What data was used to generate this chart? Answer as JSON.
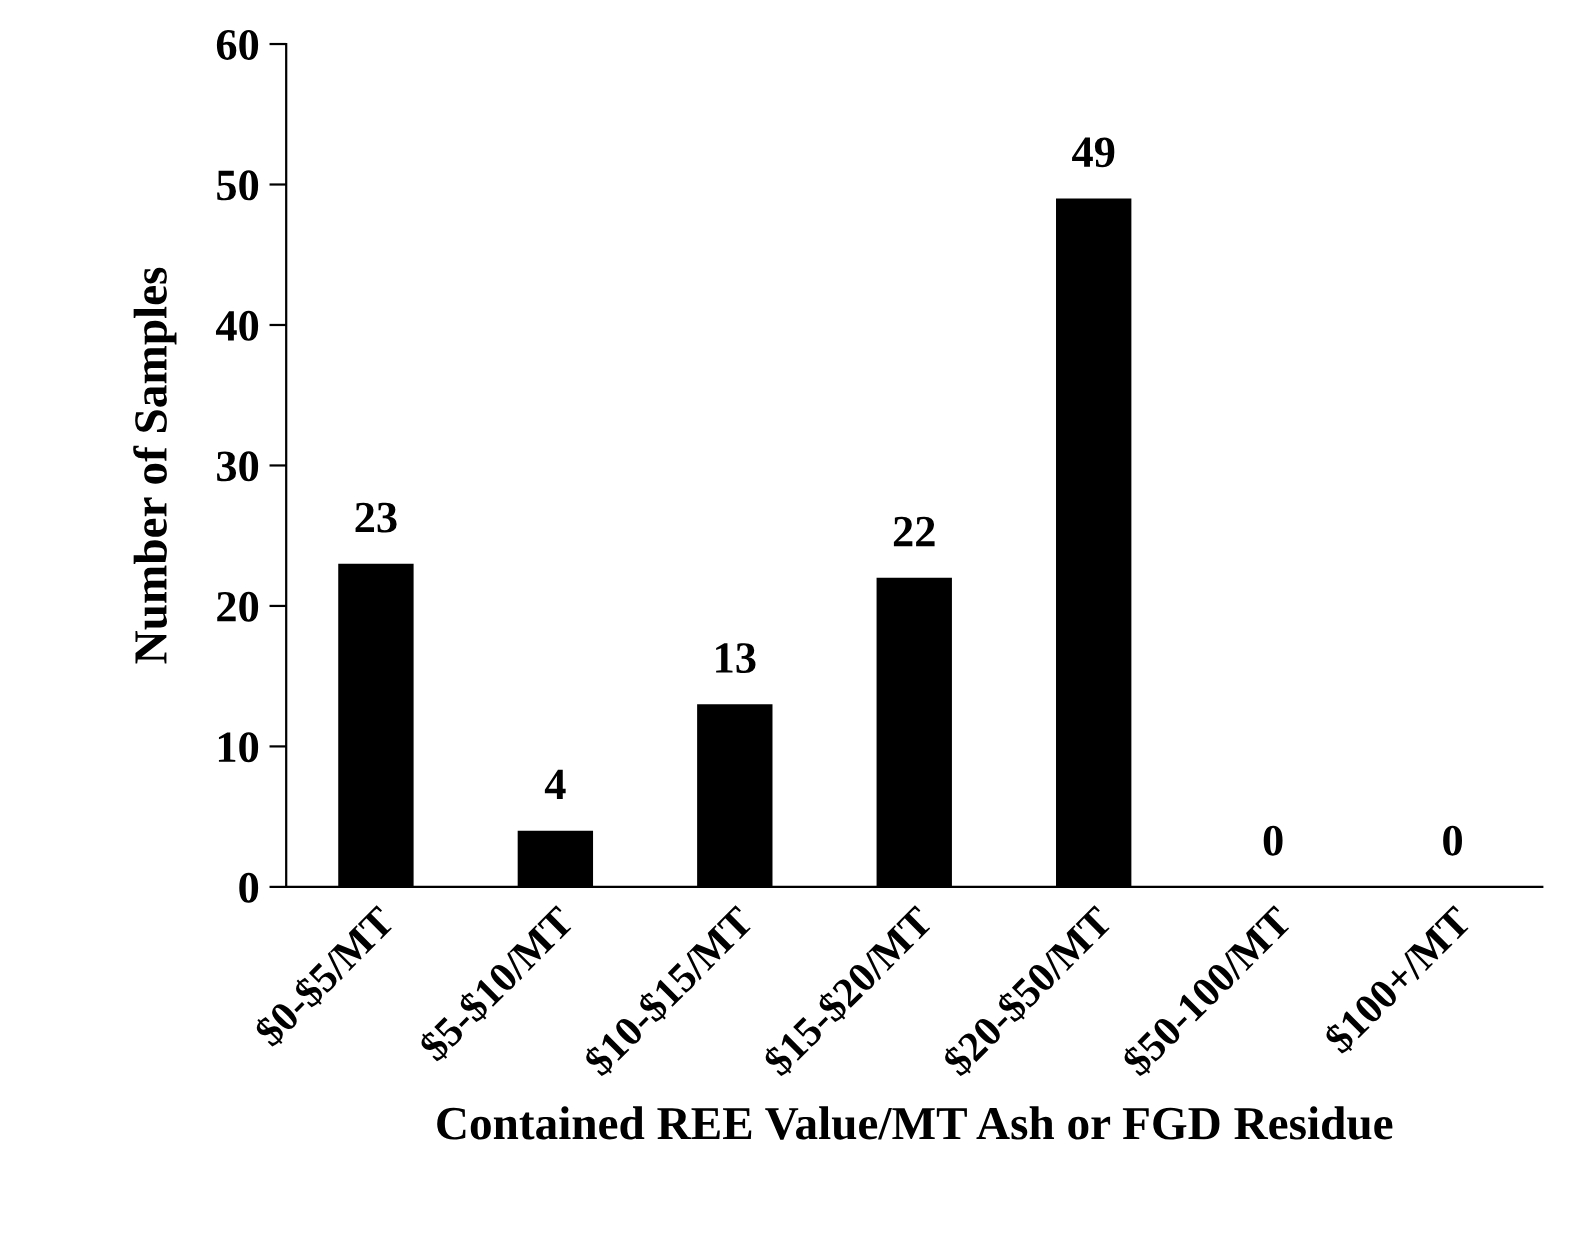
{
  "chart_data": {
    "type": "bar",
    "xlabel": "Contained REE Value/MT Ash or FGD Residue",
    "ylabel": "Number of Samples",
    "categories": [
      "$0-$5/MT",
      "$5-$10/MT",
      "$10-$15/MT",
      "$15-$20/MT",
      "$20-$50/MT",
      "$50-100/MT",
      "$100+/MT"
    ],
    "values": [
      23,
      4,
      13,
      22,
      49,
      0,
      0
    ],
    "color": "#000000",
    "ylim": [
      0,
      60
    ],
    "yticks": [
      0,
      10,
      20,
      30,
      40,
      50,
      60
    ],
    "grid": false,
    "data_labels": true
  }
}
